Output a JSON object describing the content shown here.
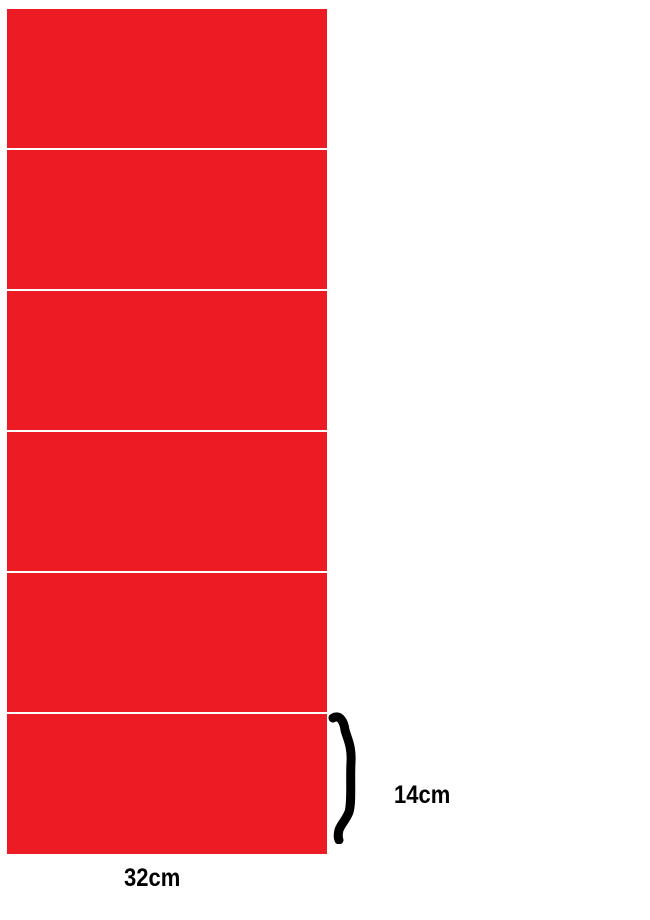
{
  "diagram": {
    "rectangle_fill": "#ed1c24",
    "rectangle_count": 6,
    "labels": {
      "height": "14cm",
      "width": "32cm"
    }
  }
}
